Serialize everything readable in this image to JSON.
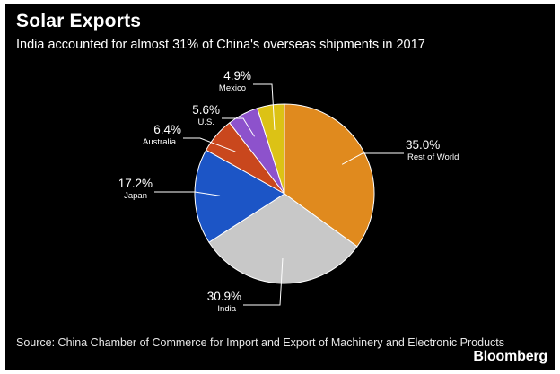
{
  "title": "Solar Exports",
  "subtitle": "India accounted for almost 31% of China's overseas shipments in 2017",
  "source": "Source: China Chamber of Commerce for Import and Export of Machinery and Electronic Products",
  "brand": "Bloomberg",
  "chart_data": {
    "type": "pie",
    "title": "Solar Exports",
    "subtitle": "India accounted for almost 31% of China's overseas shipments in 2017",
    "slices": [
      {
        "label": "Rest of World",
        "value": 35.0,
        "display": "35.0%",
        "color": "#e08a1e"
      },
      {
        "label": "India",
        "value": 30.9,
        "display": "30.9%",
        "color": "#c8c8c8"
      },
      {
        "label": "Japan",
        "value": 17.2,
        "display": "17.2%",
        "color": "#1c55c6"
      },
      {
        "label": "Australia",
        "value": 6.4,
        "display": "6.4%",
        "color": "#c9471d"
      },
      {
        "label": "U.S.",
        "value": 5.6,
        "display": "5.6%",
        "color": "#8d52cc"
      },
      {
        "label": "Mexico",
        "value": 4.9,
        "display": "4.9%",
        "color": "#dcc215"
      }
    ],
    "start_angle_deg": 0,
    "direction": "clockwise",
    "legend": "none"
  }
}
